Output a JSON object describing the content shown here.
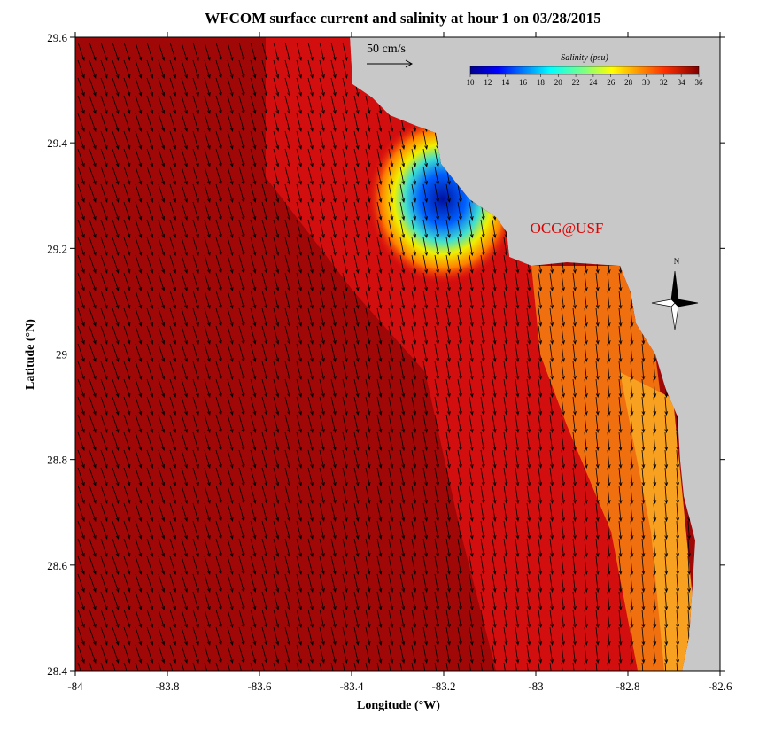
{
  "title": "WFCOM surface current and salinity at hour 1 on 03/28/2015",
  "map": {
    "xlabel": "Longitude (°W)",
    "ylabel": "Latitude (°N)",
    "xlim": [
      -84,
      -82.6
    ],
    "ylim": [
      28.4,
      29.6
    ],
    "xticks": [
      -84,
      -83.8,
      -83.6,
      -83.4,
      -83.2,
      -83,
      -82.8,
      -82.6
    ],
    "yticks": [
      28.4,
      28.6,
      28.8,
      29,
      29.2,
      29.4,
      29.6
    ]
  },
  "colorbar": {
    "title": "Salinity (psu)",
    "ticks": [
      10,
      12,
      14,
      16,
      18,
      20,
      22,
      24,
      26,
      28,
      30,
      32,
      34,
      36
    ]
  },
  "scale_arrow": "50 cm/s",
  "credit": "OCG@USF",
  "compass": "N"
}
